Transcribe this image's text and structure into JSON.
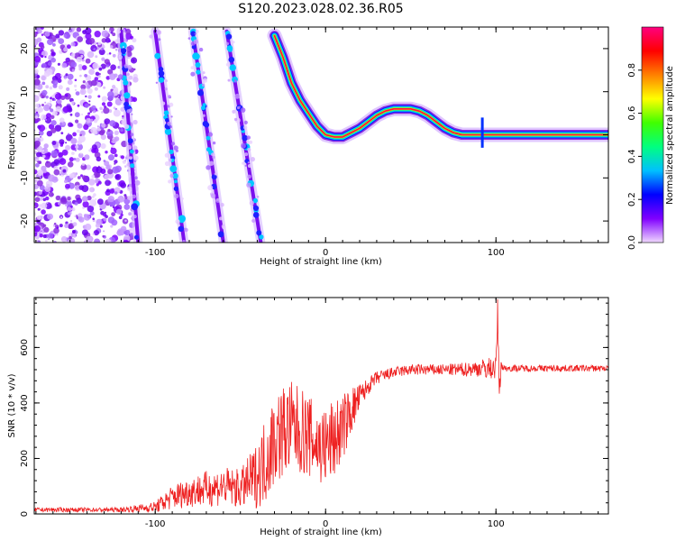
{
  "chart_data": [
    {
      "type": "heatmap",
      "title": "S120.2023.028.02.36.R05",
      "xlabel": "Height of straight line (km)",
      "ylabel": "Frequency (Hz)",
      "xlim": [
        -171,
        166
      ],
      "ylim": [
        -25,
        25
      ],
      "x_ticks": [
        -100,
        0,
        100
      ],
      "y_ticks": [
        -20,
        -10,
        0,
        10,
        20
      ],
      "grid": false,
      "colorbar": {
        "label": "Normalized spectral amplitude",
        "range": [
          0,
          1
        ],
        "ticks": [
          "0.0",
          "0.2",
          "0.4",
          "0.6",
          "0.8"
        ],
        "colors": [
          "#f0d8ff",
          "#8000ff",
          "#0000ff",
          "#00c0ff",
          "#00ff80",
          "#40ff00",
          "#ffff00",
          "#ff8000",
          "#ff0000",
          "#ff0080"
        ]
      },
      "ridge": {
        "x": [
          -30,
          -25,
          -20,
          -15,
          -10,
          -5,
          0,
          5,
          10,
          15,
          20,
          25,
          30,
          35,
          40,
          45,
          50,
          55,
          60,
          65,
          70,
          75,
          80,
          90,
          100,
          120,
          140,
          166
        ],
        "y": [
          23,
          18,
          12,
          8,
          5,
          2,
          0,
          -0.5,
          -0.5,
          0.5,
          1.5,
          3,
          4.5,
          5.5,
          6,
          6,
          6,
          5.5,
          4.5,
          3,
          1.5,
          0.5,
          0,
          0,
          0,
          0,
          0,
          0
        ]
      },
      "diagonal_traces": [
        {
          "x": [
            -120,
            -110
          ],
          "y": [
            24,
            -25
          ]
        },
        {
          "x": [
            -100,
            -83
          ],
          "y": [
            24,
            -25
          ]
        },
        {
          "x": [
            -78,
            -60
          ],
          "y": [
            24,
            -25
          ]
        },
        {
          "x": [
            -58,
            -38
          ],
          "y": [
            24,
            -25
          ]
        }
      ]
    },
    {
      "type": "line",
      "title": "",
      "xlabel": "Height of straight line (km)",
      "ylabel": "SNR (10 * v/v)",
      "xlim": [
        -171,
        166
      ],
      "ylim": [
        0,
        780
      ],
      "x_ticks": [
        -100,
        0,
        100
      ],
      "y_ticks": [
        0,
        200,
        400,
        600
      ],
      "grid": false,
      "color": "#ee2020",
      "envelope": {
        "x": [
          -171,
          -140,
          -120,
          -100,
          -90,
          -80,
          -70,
          -60,
          -50,
          -40,
          -35,
          -30,
          -25,
          -20,
          -15,
          -10,
          -5,
          0,
          5,
          10,
          15,
          20,
          25,
          30,
          40,
          50,
          60,
          70,
          80,
          90,
          95,
          100,
          101,
          102,
          103,
          104,
          105,
          110,
          120,
          140,
          166
        ],
        "mean": [
          15,
          15,
          15,
          25,
          60,
          80,
          90,
          100,
          90,
          140,
          200,
          270,
          300,
          310,
          300,
          280,
          250,
          240,
          270,
          310,
          370,
          420,
          460,
          490,
          510,
          520,
          520,
          520,
          520,
          525,
          525,
          525,
          730,
          420,
          540,
          530,
          525,
          525,
          525,
          525,
          525
        ],
        "amp": [
          8,
          8,
          8,
          20,
          45,
          55,
          65,
          70,
          70,
          120,
          160,
          170,
          170,
          170,
          160,
          150,
          140,
          150,
          150,
          120,
          90,
          50,
          30,
          25,
          20,
          20,
          20,
          20,
          25,
          30,
          40,
          40,
          50,
          50,
          20,
          15,
          12,
          12,
          12,
          12,
          12
        ]
      }
    }
  ]
}
